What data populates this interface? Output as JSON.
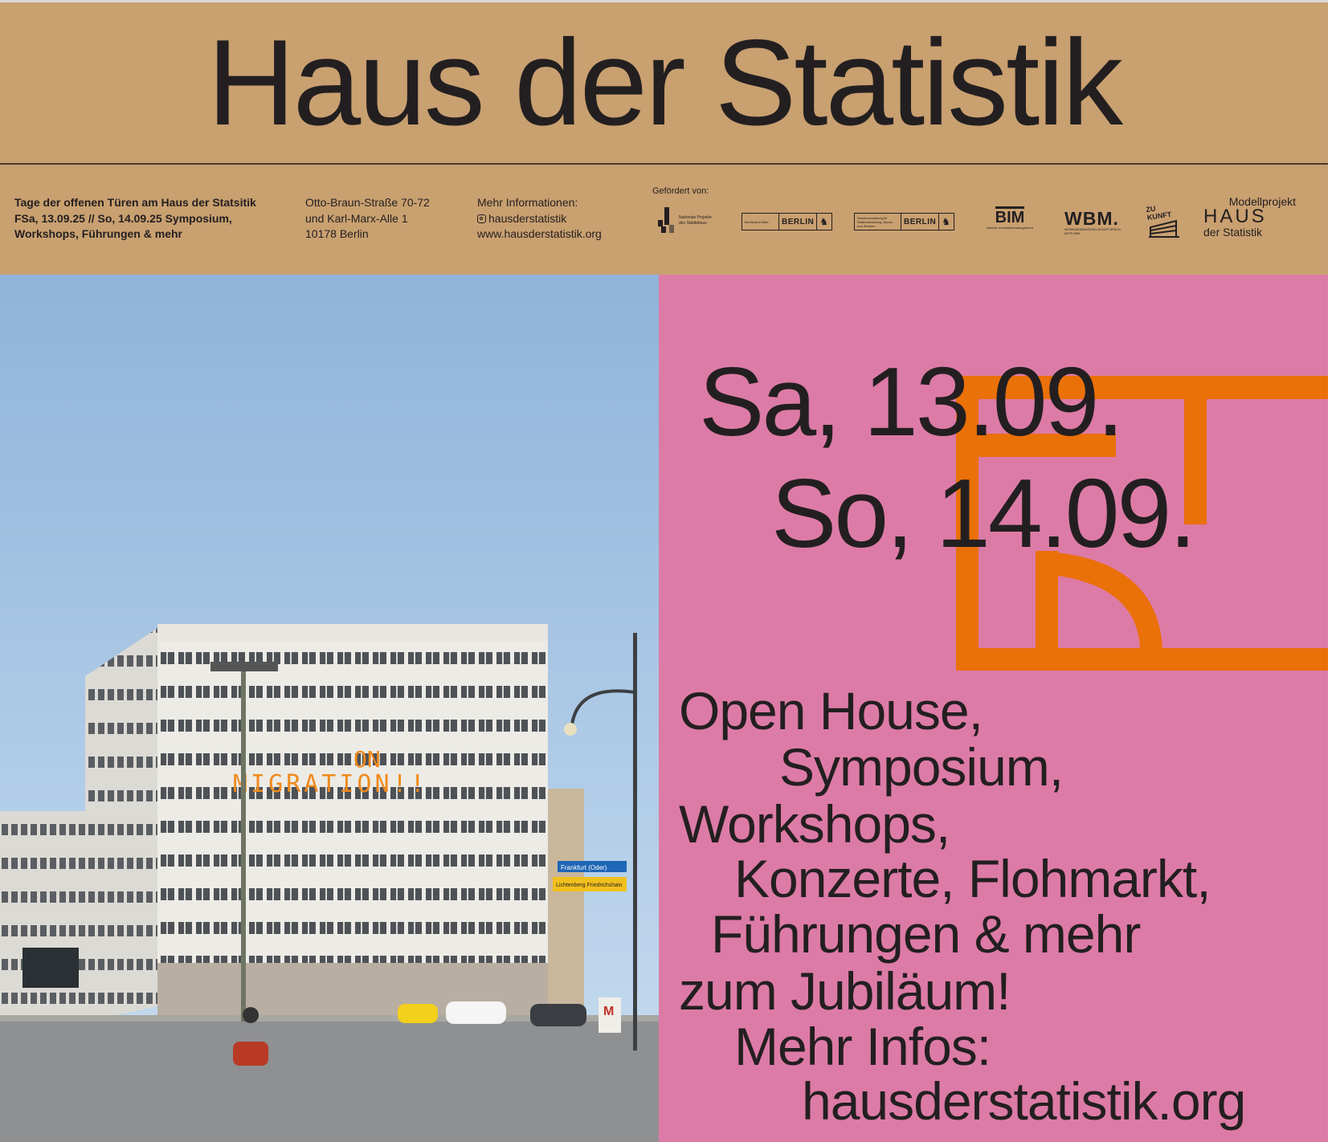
{
  "header": {
    "title": "Haus der Statistik"
  },
  "info": {
    "event": [
      "Tage der offenen Türen am Haus der Statsitik",
      "FSa, 13.09.25 // So, 14.09.25 Symposium,",
      "Workshops, Führungen & mehr"
    ],
    "address": [
      "Otto-Braun-Straße 70-72",
      "und Karl-Marx-Alle 1",
      "10178 Berlin"
    ],
    "more": {
      "label": "Mehr Informationen:",
      "instagram": "hausderstatistik",
      "instagram_icon": "instagram-icon",
      "website": "www.hausderstatistik.org"
    }
  },
  "sponsors": {
    "label": "Gefördert von:",
    "logos": [
      {
        "name": "Nationale Projekte des Städtebaus",
        "text": "Nationale Projekte des Städtebaus"
      },
      {
        "name": "Bezirksamt Mitte Berlin",
        "small": "Bezirksamt Mitte",
        "text": "BERLIN"
      },
      {
        "name": "Senatsverwaltung für Stadtentwicklung, Bauen und Wohnen Berlin",
        "small": "Senatsverwaltung für Stadtentwicklung, Bauen und Wohnen",
        "text": "BERLIN"
      },
      {
        "name": "BIM",
        "text": "BIM",
        "sub": "Berliner Immobilienmanagement"
      },
      {
        "name": "WBM",
        "text": "WBM.",
        "sub": "WOHNUNGSBAUGESELLSCHAFT BERLIN-MITTE MBH"
      },
      {
        "name": "ZUKUNFT",
        "text": "ZU KUNFT"
      },
      {
        "name": "Modellprojekt Haus der Statistik",
        "top": "Modellprojekt",
        "mid": "HAUS",
        "bottom": "der Statistik"
      }
    ]
  },
  "photo": {
    "banner_line1": "ON",
    "banner_line2": "MIGRATION!!",
    "sign1": "Frankfurt (Oder)",
    "sign2": "Lichtenberg Friedrichshain",
    "metro": "M"
  },
  "dates": [
    "Sa, 13.09.",
    "So, 14.09."
  ],
  "program": [
    "Open House,",
    "Symposium,",
    "Workshops,",
    "Konzerte, Flohmarkt,",
    "Führungen & mehr",
    "zum Jubiläum!",
    "Mehr Infos:",
    "hausderstatistik.org"
  ],
  "colors": {
    "tan": "#c9a070",
    "pink": "#dd7ba7",
    "orange": "#ea7008",
    "text": "#231f20"
  }
}
